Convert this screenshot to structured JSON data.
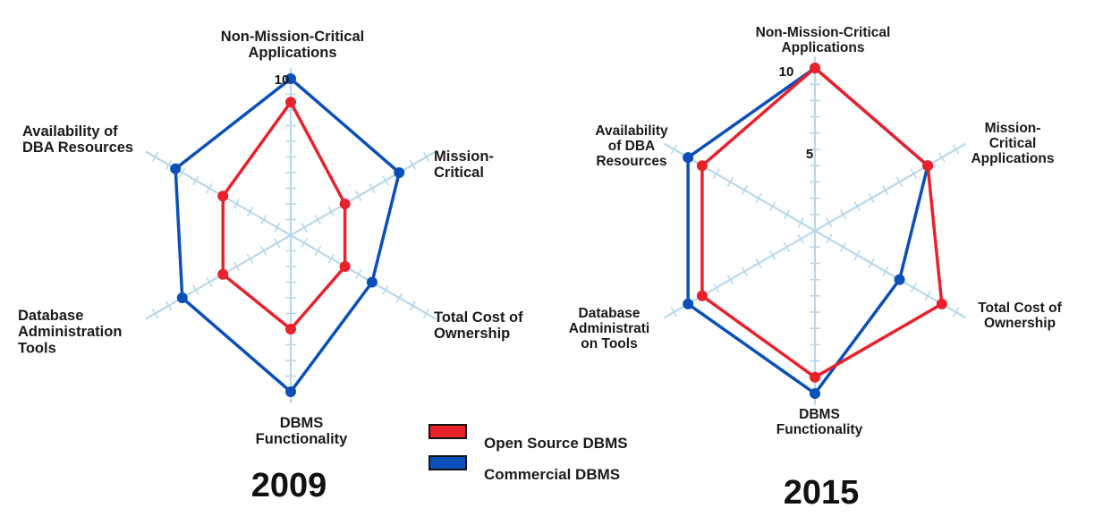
{
  "chart_data": [
    {
      "type": "radar",
      "title": "2009",
      "axes": [
        "Non-Mission-Critical Applications",
        "Mission-Critical",
        "Total Cost of Ownership",
        "DBMS Functionality",
        "Database Administration Tools",
        "Availability of DBA Resources"
      ],
      "axis_label_lines": [
        [
          "Non-Mission-Critical",
          "Applications"
        ],
        [
          "Mission-",
          "Critical"
        ],
        [
          "Total Cost of",
          "Ownership"
        ],
        [
          "DBMS",
          "Functionality"
        ],
        [
          "Database",
          "Administration",
          "Tools"
        ],
        [
          "Availability of",
          "DBA Resources"
        ]
      ],
      "range": [
        0,
        10
      ],
      "tick_labels": [
        "10"
      ],
      "series": [
        {
          "name": "Open Source DBMS",
          "color": "#e8212a",
          "values": [
            8.5,
            4.0,
            4.0,
            6.0,
            5.0,
            5.0
          ]
        },
        {
          "name": "Commercial DBMS",
          "color": "#0b4fb8",
          "values": [
            10.0,
            8.0,
            6.0,
            10.0,
            8.0,
            8.5
          ]
        }
      ]
    },
    {
      "type": "radar",
      "title": "2015",
      "axes": [
        "Non-Mission-Critical Applications",
        "Mission-Critical Applications",
        "Total Cost of Ownership",
        "DBMS Functionality",
        "Database Administration Tools",
        "Availability of DBA Resources"
      ],
      "axis_label_lines": [
        [
          "Non-Mission-Critical",
          "Applications"
        ],
        [
          "Mission-",
          "Critical",
          "Applications"
        ],
        [
          "Total Cost of",
          "Ownership"
        ],
        [
          "DBMS",
          "Functionality"
        ],
        [
          "Database",
          "Administrati",
          "on Tools"
        ],
        [
          "Availability",
          "of DBA",
          "Resources"
        ]
      ],
      "range": [
        0,
        10
      ],
      "tick_labels": [
        "10",
        "5"
      ],
      "series": [
        {
          "name": "Open Source DBMS",
          "color": "#e8212a",
          "values": [
            10.0,
            8.0,
            9.0,
            9.0,
            8.0,
            8.0
          ]
        },
        {
          "name": "Commercial DBMS",
          "color": "#0b4fb8",
          "values": [
            10.0,
            8.0,
            6.0,
            10.0,
            9.0,
            9.0
          ]
        }
      ]
    }
  ],
  "legend": [
    {
      "label": "Open Source DBMS",
      "color": "#e8212a"
    },
    {
      "label": "Commercial DBMS",
      "color": "#0b4fb8"
    }
  ],
  "colors": {
    "gridline": "#b9d8ec",
    "open_source": "#e8212a",
    "commercial": "#0b4fb8"
  }
}
